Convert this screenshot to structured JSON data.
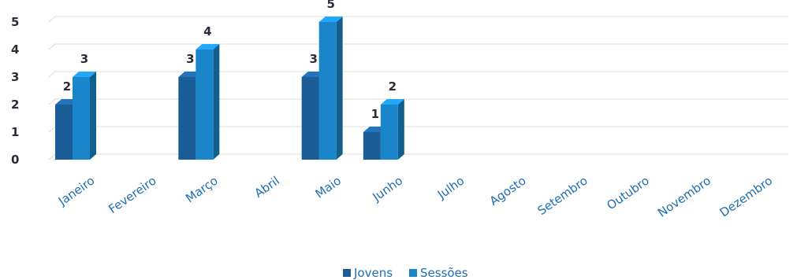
{
  "chart_data": {
    "type": "bar",
    "categories": [
      "Janeiro",
      "Fevereiro",
      "Março",
      "Abril",
      "Maio",
      "Junho",
      "Julho",
      "Agosto",
      "Setembro",
      "Outubro",
      "Novembro",
      "Dezembro"
    ],
    "series": [
      {
        "name": "Jovens",
        "values": [
          2,
          null,
          3,
          null,
          3,
          1,
          null,
          null,
          null,
          null,
          null,
          null
        ],
        "color": "#1b5d96"
      },
      {
        "name": "Sessões",
        "values": [
          3,
          null,
          4,
          null,
          5,
          2,
          null,
          null,
          null,
          null,
          null,
          null
        ],
        "color": "#1a86c9"
      }
    ],
    "title": "",
    "xlabel": "",
    "ylabel": "",
    "ylim": [
      0,
      5
    ],
    "yticks": [
      0,
      1,
      2,
      3,
      4,
      5
    ],
    "grid": true,
    "legend_position": "bottom",
    "style": "3d-clustered-column"
  }
}
